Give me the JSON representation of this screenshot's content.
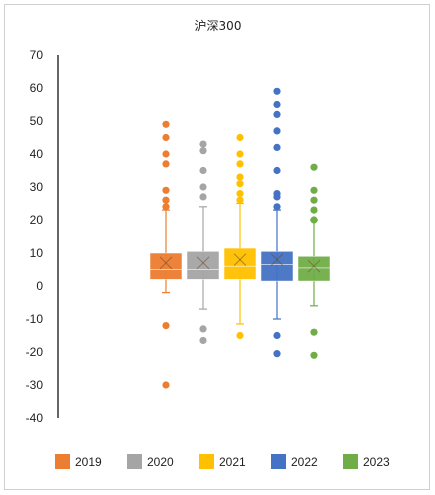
{
  "chart_data": {
    "type": "box",
    "title": "沪深300",
    "xlabel": "",
    "ylabel": "",
    "ylim": [
      -40,
      70
    ],
    "yticks": [
      70,
      60,
      50,
      40,
      30,
      20,
      10,
      0,
      -10,
      -20,
      -30,
      -40
    ],
    "grid": false,
    "legend_position": "bottom",
    "series": [
      {
        "name": "2019",
        "color": "#ED7D31",
        "whisker_low": -2,
        "q1": 2,
        "median": 5,
        "q3": 10,
        "whisker_high": 23,
        "mean": 7,
        "outliers": [
          49,
          45,
          40,
          37,
          29,
          26,
          24,
          -12,
          -30
        ]
      },
      {
        "name": "2020",
        "color": "#A5A5A5",
        "whisker_low": -7,
        "q1": 2,
        "median": 5,
        "q3": 10.5,
        "whisker_high": 24,
        "mean": 7,
        "outliers": [
          43,
          41,
          35,
          30,
          27,
          -13,
          -16.5
        ]
      },
      {
        "name": "2021",
        "color": "#FFC000",
        "whisker_low": -11.5,
        "q1": 2,
        "median": 6,
        "q3": 11.5,
        "whisker_high": 25,
        "mean": 8,
        "outliers": [
          45,
          40,
          37,
          33,
          31,
          28,
          26,
          -15
        ]
      },
      {
        "name": "2022",
        "color": "#4472C4",
        "whisker_low": -10,
        "q1": 1.5,
        "median": 6.5,
        "q3": 10.5,
        "whisker_high": 23,
        "mean": 8,
        "outliers": [
          59,
          55,
          52,
          47,
          42,
          35,
          28,
          27,
          24,
          -15,
          -20.5
        ]
      },
      {
        "name": "2023",
        "color": "#70AD47",
        "whisker_low": -6,
        "q1": 1.5,
        "median": 5.5,
        "q3": 9,
        "whisker_high": 20,
        "mean": 6,
        "outliers": [
          36,
          29,
          26,
          23,
          20,
          -14,
          -21
        ]
      }
    ]
  }
}
